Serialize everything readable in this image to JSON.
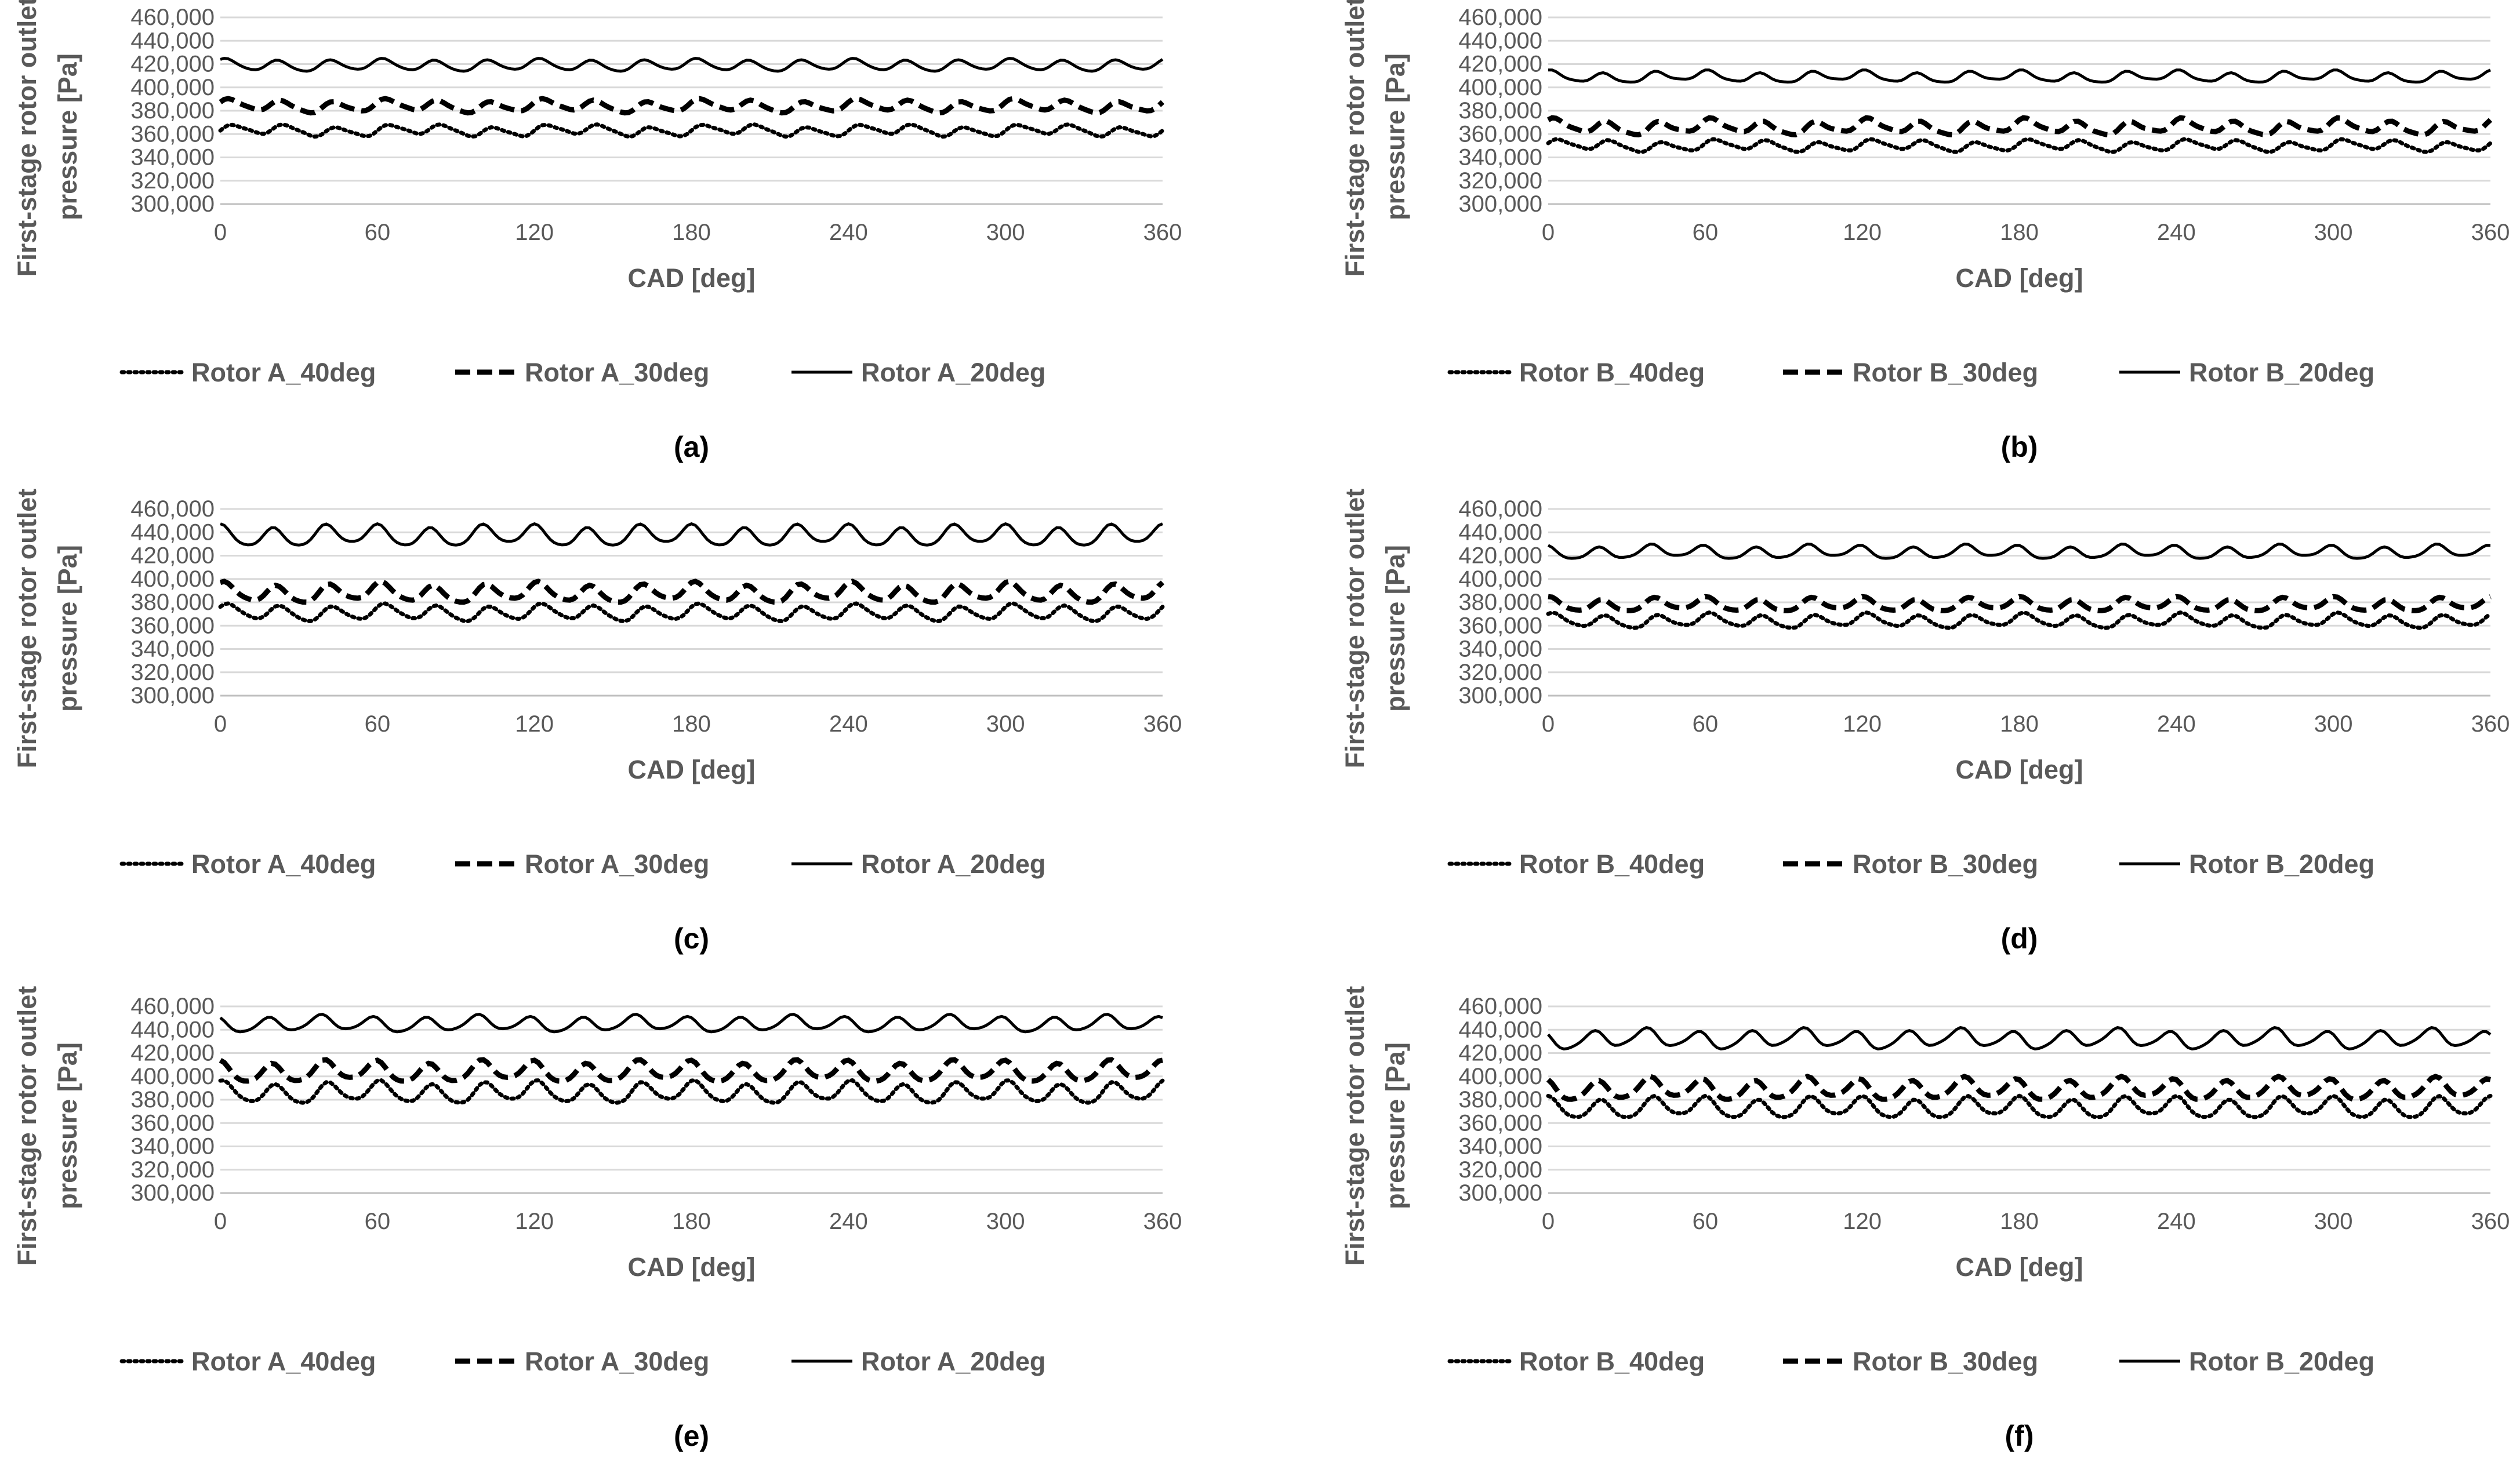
{
  "chart_data": [
    {
      "type": "line",
      "panel_label": "(a)",
      "rotor": "A",
      "xlabel": "CAD [deg]",
      "ylabel": "First-stage rotor outlet pressure [Pa]",
      "xlim": [
        0,
        360
      ],
      "ylim": [
        300000,
        460000
      ],
      "xticks": [
        "0",
        "60",
        "120",
        "180",
        "240",
        "300",
        "360"
      ],
      "yticks": [
        "300,000",
        "320,000",
        "340,000",
        "360,000",
        "380,000",
        "400,000",
        "420,000",
        "440,000",
        "460,000"
      ],
      "grid": true,
      "legend_position": "bottom",
      "series": [
        {
          "name": "Rotor A_40deg",
          "style": "dotted",
          "mean": 363000,
          "amp": 4000,
          "amp2": 1500,
          "min_value": 358000,
          "max_value": 368000
        },
        {
          "name": "Rotor A_30deg",
          "style": "dashed",
          "mean": 384000,
          "amp": 4500,
          "amp2": 1500,
          "min_value": 378000,
          "max_value": 390000
        },
        {
          "name": "Rotor A_20deg",
          "style": "solid",
          "mean": 419000,
          "amp": 4500,
          "amp2": 1000,
          "min_value": 414000,
          "max_value": 425000
        }
      ]
    },
    {
      "type": "line",
      "panel_label": "(b)",
      "rotor": "B",
      "xlabel": "CAD [deg]",
      "ylabel": "First-stage rotor outlet pressure [Pa]",
      "xlim": [
        0,
        360
      ],
      "ylim": [
        300000,
        460000
      ],
      "xticks": [
        "0",
        "60",
        "120",
        "180",
        "240",
        "300",
        "360"
      ],
      "yticks": [
        "300,000",
        "320,000",
        "340,000",
        "360,000",
        "380,000",
        "400,000",
        "420,000",
        "440,000",
        "460,000"
      ],
      "grid": true,
      "legend_position": "bottom",
      "series": [
        {
          "name": "Rotor B_40deg",
          "style": "dotted",
          "mean": 350000,
          "amp": 4000,
          "amp2": 1500,
          "min_value": 345000,
          "max_value": 355000
        },
        {
          "name": "Rotor B_30deg",
          "style": "dashed",
          "mean": 366000,
          "amp": 5000,
          "amp2": 2000,
          "min_value": 358000,
          "max_value": 373000
        },
        {
          "name": "Rotor B_20deg",
          "style": "solid",
          "mean": 409000,
          "amp": 4000,
          "amp2": 1500,
          "min_value": 403000,
          "max_value": 414000
        }
      ]
    },
    {
      "type": "line",
      "panel_label": "(c)",
      "rotor": "A",
      "xlabel": "CAD [deg]",
      "ylabel": "First-stage rotor outlet pressure [Pa]",
      "xlim": [
        0,
        360
      ],
      "ylim": [
        300000,
        460000
      ],
      "xticks": [
        "0",
        "60",
        "120",
        "180",
        "240",
        "300",
        "360"
      ],
      "yticks": [
        "300,000",
        "320,000",
        "340,000",
        "360,000",
        "380,000",
        "400,000",
        "420,000",
        "440,000",
        "460,000"
      ],
      "grid": true,
      "legend_position": "bottom",
      "series": [
        {
          "name": "Rotor A_40deg",
          "style": "dotted",
          "mean": 371000,
          "amp": 6000,
          "amp2": 1500,
          "min_value": 364000,
          "max_value": 380000
        },
        {
          "name": "Rotor A_30deg",
          "style": "dashed",
          "mean": 388000,
          "amp": 7000,
          "amp2": 2000,
          "min_value": 380000,
          "max_value": 400000
        },
        {
          "name": "Rotor A_20deg",
          "style": "solid",
          "mean": 437000,
          "amp": 8000,
          "amp2": 2000,
          "min_value": 427000,
          "max_value": 446000
        }
      ]
    },
    {
      "type": "line",
      "panel_label": "(d)",
      "rotor": "B",
      "xlabel": "CAD [deg]",
      "ylabel": "First-stage rotor outlet pressure [Pa]",
      "xlim": [
        0,
        360
      ],
      "ylim": [
        300000,
        460000
      ],
      "xticks": [
        "0",
        "60",
        "120",
        "180",
        "240",
        "300",
        "360"
      ],
      "yticks": [
        "300,000",
        "320,000",
        "340,000",
        "360,000",
        "380,000",
        "400,000",
        "420,000",
        "440,000",
        "460,000"
      ],
      "grid": true,
      "legend_position": "bottom",
      "series": [
        {
          "name": "Rotor B_40deg",
          "style": "dotted",
          "mean": 364000,
          "amp": 5000,
          "amp2": 1500,
          "min_value": 358000,
          "max_value": 370000
        },
        {
          "name": "Rotor B_30deg",
          "style": "dashed",
          "mean": 378000,
          "amp": 5000,
          "amp2": 1500,
          "min_value": 372000,
          "max_value": 385000
        },
        {
          "name": "Rotor B_20deg",
          "style": "solid",
          "mean": 423000,
          "amp": 5000,
          "amp2": 1500,
          "min_value": 417000,
          "max_value": 430000
        }
      ]
    },
    {
      "type": "line",
      "panel_label": "(e)",
      "rotor": "A",
      "xlabel": "CAD [deg]",
      "ylabel": "First-stage rotor outlet pressure [Pa]",
      "xlim": [
        0,
        360
      ],
      "ylim": [
        300000,
        460000
      ],
      "xticks": [
        "0",
        "60",
        "120",
        "180",
        "240",
        "300",
        "360"
      ],
      "yticks": [
        "300,000",
        "320,000",
        "340,000",
        "360,000",
        "380,000",
        "400,000",
        "420,000",
        "440,000",
        "460,000"
      ],
      "grid": true,
      "legend_position": "bottom",
      "series": [
        {
          "name": "Rotor A_40deg",
          "style": "dotted",
          "mean": 386000,
          "amp": 8000,
          "amp2": 2000,
          "min_value": 377000,
          "max_value": 395000
        },
        {
          "name": "Rotor A_30deg",
          "style": "dashed",
          "mean": 404000,
          "amp": 8000,
          "amp2": 2000,
          "min_value": 395000,
          "max_value": 413000
        },
        {
          "name": "Rotor A_20deg",
          "style": "solid",
          "mean": 445000,
          "amp": 6000,
          "amp2": 1500,
          "min_value": 437000,
          "max_value": 456000
        }
      ]
    },
    {
      "type": "line",
      "panel_label": "(f)",
      "rotor": "B",
      "xlabel": "CAD [deg]",
      "ylabel": "First-stage rotor outlet pressure [Pa]",
      "xlim": [
        0,
        360
      ],
      "ylim": [
        300000,
        460000
      ],
      "xticks": [
        "0",
        "60",
        "120",
        "180",
        "240",
        "300",
        "360"
      ],
      "yticks": [
        "300,000",
        "320,000",
        "340,000",
        "360,000",
        "380,000",
        "400,000",
        "420,000",
        "440,000",
        "460,000"
      ],
      "grid": true,
      "legend_position": "bottom",
      "series": [
        {
          "name": "Rotor B_40deg",
          "style": "dotted",
          "mean": 373000,
          "amp": 8000,
          "amp2": 2000,
          "min_value": 364000,
          "max_value": 383000
        },
        {
          "name": "Rotor B_30deg",
          "style": "dashed",
          "mean": 389000,
          "amp": 8000,
          "amp2": 2000,
          "min_value": 379000,
          "max_value": 399000
        },
        {
          "name": "Rotor B_20deg",
          "style": "solid",
          "mean": 432000,
          "amp": 7000,
          "amp2": 2000,
          "min_value": 423000,
          "max_value": 444000
        }
      ]
    }
  ]
}
